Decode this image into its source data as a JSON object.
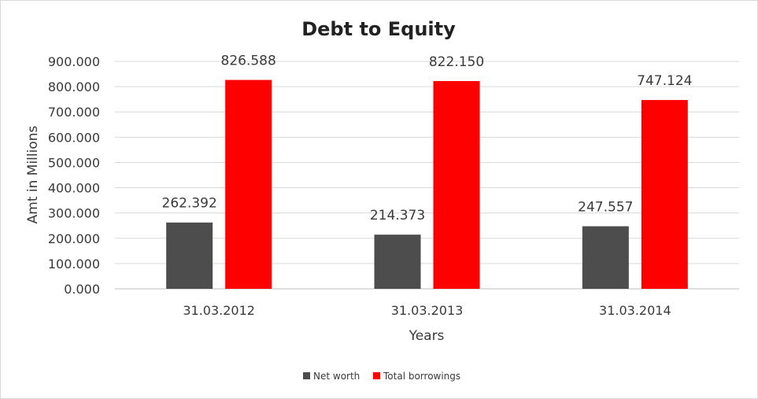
{
  "chart_data": {
    "type": "bar",
    "title": "Debt to Equity",
    "xlabel": "Years",
    "ylabel": "Amt in Millions",
    "categories": [
      "31.03.2012",
      "31.03.2013",
      "31.03.2014"
    ],
    "series": [
      {
        "name": "Net worth",
        "color": "#4d4d4d",
        "values": [
          262.392,
          214.373,
          247.557
        ],
        "labels": [
          "262.392",
          "214.373",
          "247.557"
        ]
      },
      {
        "name": "Total borrowings",
        "color": "#ff0000",
        "values": [
          826.588,
          822.15,
          747.124
        ],
        "labels": [
          "826.588",
          "822.150",
          "747.124"
        ]
      }
    ],
    "ylim": [
      0,
      900
    ],
    "yticks": [
      0,
      100,
      200,
      300,
      400,
      500,
      600,
      700,
      800,
      900
    ],
    "ytick_labels": [
      "0.000",
      "100.000",
      "200.000",
      "300.000",
      "400.000",
      "500.000",
      "600.000",
      "700.000",
      "800.000",
      "900.000"
    ],
    "grid": true,
    "legend_position": "bottom"
  }
}
